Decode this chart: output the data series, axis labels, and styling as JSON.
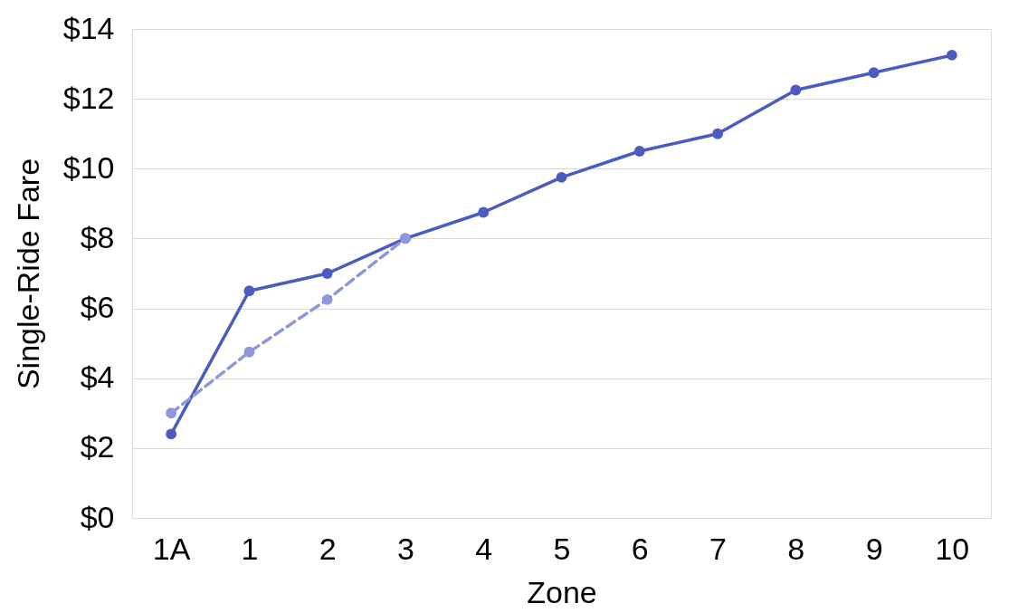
{
  "chart_data": {
    "type": "line",
    "xlabel": "Zone",
    "ylabel": "Single-Ride Fare",
    "categories": [
      "1A",
      "1",
      "2",
      "3",
      "4",
      "5",
      "6",
      "7",
      "8",
      "9",
      "10"
    ],
    "series": [
      {
        "color": "#4a5cbf",
        "values": [
          2.4,
          6.5,
          7.0,
          8.0,
          8.75,
          9.75,
          10.5,
          11.0,
          12.25,
          12.75,
          13.25
        ],
        "line_style": "solid"
      },
      {
        "color": "#8c98d8",
        "values": [
          3.0,
          4.75,
          6.25,
          8.0,
          null,
          null,
          null,
          null,
          null,
          null,
          null
        ],
        "line_style": "dashed"
      }
    ],
    "ylim": [
      0,
      14
    ],
    "yticks": [
      {
        "value": 0,
        "label": "$0"
      },
      {
        "value": 2,
        "label": "$2"
      },
      {
        "value": 4,
        "label": "$4"
      },
      {
        "value": 6,
        "label": "$6"
      },
      {
        "value": 8,
        "label": "$8"
      },
      {
        "value": 10,
        "label": "$10"
      },
      {
        "value": 12,
        "label": "$12"
      },
      {
        "value": 14,
        "label": "$14"
      }
    ],
    "grid": "y",
    "marker": "circle"
  }
}
